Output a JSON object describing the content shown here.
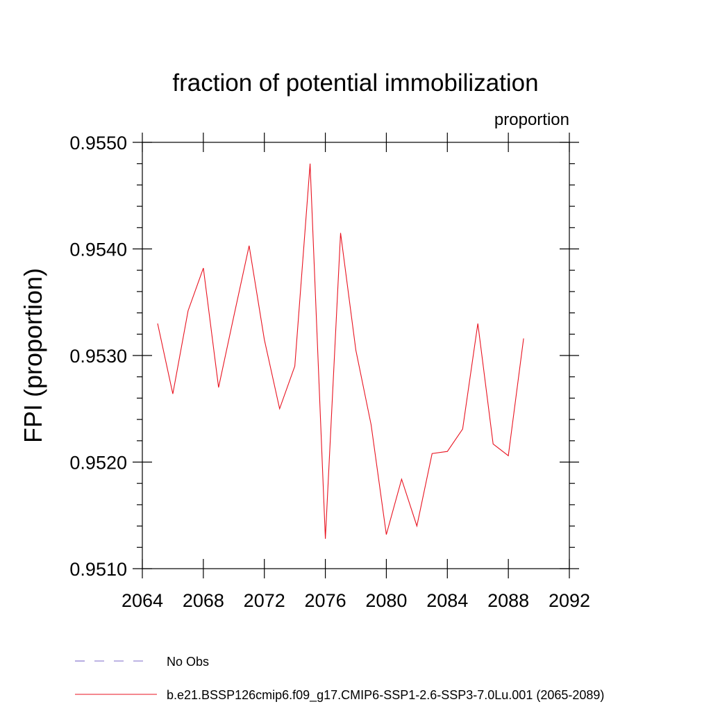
{
  "chart_data": {
    "type": "line",
    "title": "fraction of potential immobilization",
    "units_label": "proportion",
    "ylabel": "FPI  (proportion)",
    "xlabel": "",
    "xlim": [
      2064,
      2092
    ],
    "ylim": [
      0.951,
      0.955
    ],
    "x_ticks": [
      2064,
      2068,
      2072,
      2076,
      2080,
      2084,
      2088,
      2092
    ],
    "x_tick_labels": [
      "2064",
      "2068",
      "2072",
      "2076",
      "2080",
      "2084",
      "2088",
      "2092"
    ],
    "y_ticks": [
      0.951,
      0.952,
      0.953,
      0.954,
      0.955
    ],
    "y_tick_labels": [
      "0.9510",
      "0.9520",
      "0.9530",
      "0.9540",
      "0.9550"
    ],
    "grid": false,
    "legend_position": "bottom",
    "series": [
      {
        "name": "b.e21.BSSP126cmip6.f09_g17.CMIP6-SSP1-2.6-SSP3-7.0Lu.001 (2065-2089)",
        "color": "#e8121f",
        "x": [
          2065,
          2066,
          2067,
          2068,
          2069,
          2070,
          2071,
          2072,
          2073,
          2074,
          2075,
          2076,
          2077,
          2078,
          2079,
          2080,
          2081,
          2082,
          2083,
          2084,
          2085,
          2086,
          2087,
          2088,
          2089
        ],
        "values": [
          0.9533,
          0.95264,
          0.95342,
          0.95382,
          0.9527,
          0.95337,
          0.95403,
          0.95315,
          0.9525,
          0.9529,
          0.9548,
          0.95128,
          0.95415,
          0.95305,
          0.95235,
          0.95132,
          0.95184,
          0.9514,
          0.95208,
          0.9521,
          0.95231,
          0.9533,
          0.95217,
          0.95206,
          0.95316
        ]
      }
    ],
    "legend": [
      {
        "label": "No Obs",
        "color": "#7b68c8",
        "style": "dashed"
      },
      {
        "label": "b.e21.BSSP126cmip6.f09_g17.CMIP6-SSP1-2.6-SSP3-7.0Lu.001 (2065-2089)",
        "color": "#e8121f",
        "style": "solid"
      }
    ]
  }
}
